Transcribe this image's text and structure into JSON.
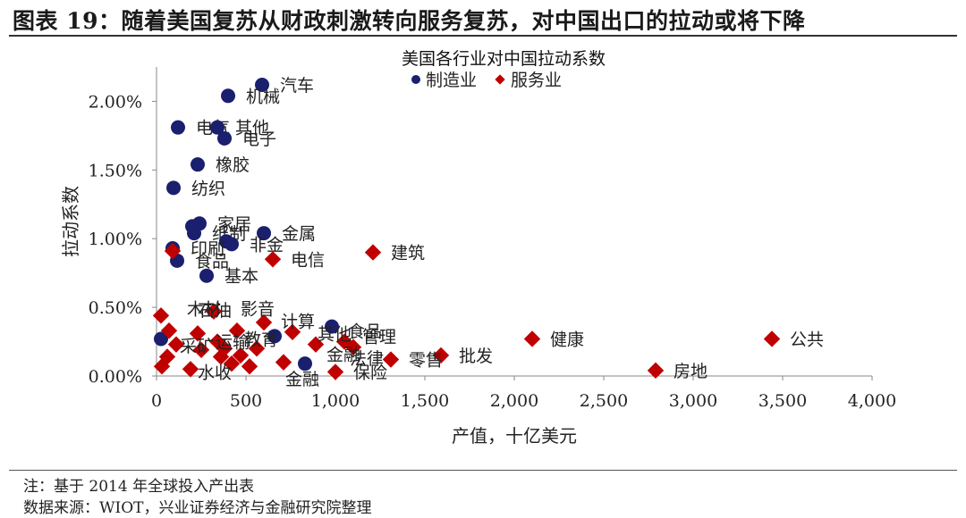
{
  "header": {
    "title": "图表 19：随着美国复苏从财政刺激转向服务复苏，对中国出口的拉动或将下降"
  },
  "footer": {
    "note": "注：基于 2014 年全球投入产出表",
    "source": "数据来源：WIOT，兴业证券经济与金融研究院整理"
  },
  "colors": {
    "manufacturing": "#1a1f6e",
    "services": "#c00000",
    "axis": "#888888",
    "rule": "#333333"
  },
  "chart_data": {
    "type": "scatter",
    "title": "美国各行业对中国拉动系数",
    "xlabel": "产值，十亿美元",
    "ylabel": "拉动系数",
    "xlim": [
      0,
      4000
    ],
    "ylim": [
      0,
      0.0225
    ],
    "x_ticks": [
      0,
      500,
      1000,
      1500,
      2000,
      2500,
      3000,
      3500,
      4000
    ],
    "x_tick_labels": [
      "0",
      "500",
      "1,000",
      "1,500",
      "2,000",
      "2,500",
      "3,000",
      "3,500",
      "4,000"
    ],
    "y_ticks": [
      0,
      0.005,
      0.01,
      0.015,
      0.02
    ],
    "y_tick_labels": [
      "0.00%",
      "0.50%",
      "1.00%",
      "1.50%",
      "2.00%"
    ],
    "legend": {
      "position": "top-right",
      "entries": [
        "制造业",
        "服务业"
      ]
    },
    "series": [
      {
        "name": "制造业",
        "marker": "circle",
        "points": [
          {
            "x": 590,
            "y": 0.0212,
            "label": "汽车"
          },
          {
            "x": 400,
            "y": 0.0204,
            "label": "机械"
          },
          {
            "x": 120,
            "y": 0.0181,
            "label": "电气"
          },
          {
            "x": 340,
            "y": 0.0181,
            "label": "其他"
          },
          {
            "x": 380,
            "y": 0.0173,
            "label": "电子"
          },
          {
            "x": 230,
            "y": 0.0154,
            "label": "橡胶"
          },
          {
            "x": 95,
            "y": 0.0137,
            "label": "纺织"
          },
          {
            "x": 240,
            "y": 0.0111,
            "label": "家居"
          },
          {
            "x": 200,
            "y": 0.0109,
            "label": ""
          },
          {
            "x": 210,
            "y": 0.0104,
            "label": "纸制"
          },
          {
            "x": 390,
            "y": 0.0098,
            "label": ""
          },
          {
            "x": 600,
            "y": 0.0104,
            "label": "金属"
          },
          {
            "x": 90,
            "y": 0.0093,
            "label": "印刷"
          },
          {
            "x": 115,
            "y": 0.0084,
            "label": "食品"
          },
          {
            "x": 420,
            "y": 0.0096,
            "label": "非金"
          },
          {
            "x": 280,
            "y": 0.0073,
            "label": "基本"
          },
          {
            "x": 25,
            "y": 0.0027,
            "label": ""
          },
          {
            "x": 980,
            "y": 0.0036,
            "label": ""
          },
          {
            "x": 660,
            "y": 0.0029,
            "label": ""
          },
          {
            "x": 830,
            "y": 0.0009,
            "label": ""
          }
        ]
      },
      {
        "name": "服务业",
        "marker": "diamond",
        "points": [
          {
            "x": 1210,
            "y": 0.009,
            "label": "建筑"
          },
          {
            "x": 650,
            "y": 0.0085,
            "label": "电信"
          },
          {
            "x": 2100,
            "y": 0.0027,
            "label": "健康"
          },
          {
            "x": 3440,
            "y": 0.0027,
            "label": "公共"
          },
          {
            "x": 2790,
            "y": 0.0004,
            "label": "房地"
          },
          {
            "x": 1590,
            "y": 0.0015,
            "label": "批发"
          },
          {
            "x": 1310,
            "y": 0.0012,
            "label": "零售"
          },
          {
            "x": 1000,
            "y": 0.0003,
            "label": "保险"
          },
          {
            "x": 25,
            "y": 0.0044,
            "label": ""
          },
          {
            "x": 90,
            "y": 0.0091,
            "label": ""
          },
          {
            "x": 70,
            "y": 0.0033,
            "label": ""
          },
          {
            "x": 110,
            "y": 0.0023,
            "label": ""
          },
          {
            "x": 60,
            "y": 0.0014,
            "label": ""
          },
          {
            "x": 30,
            "y": 0.0007,
            "label": ""
          },
          {
            "x": 190,
            "y": 0.0005,
            "label": ""
          },
          {
            "x": 230,
            "y": 0.0031,
            "label": ""
          },
          {
            "x": 320,
            "y": 0.0047,
            "label": ""
          },
          {
            "x": 340,
            "y": 0.0025,
            "label": ""
          },
          {
            "x": 380,
            "y": 0.002,
            "label": ""
          },
          {
            "x": 420,
            "y": 0.0009,
            "label": ""
          },
          {
            "x": 450,
            "y": 0.0033,
            "label": ""
          },
          {
            "x": 470,
            "y": 0.0015,
            "label": ""
          },
          {
            "x": 520,
            "y": 0.0007,
            "label": ""
          },
          {
            "x": 560,
            "y": 0.002,
            "label": ""
          },
          {
            "x": 600,
            "y": 0.0039,
            "label": ""
          },
          {
            "x": 710,
            "y": 0.001,
            "label": ""
          },
          {
            "x": 760,
            "y": 0.0032,
            "label": ""
          },
          {
            "x": 890,
            "y": 0.0023,
            "label": ""
          },
          {
            "x": 1050,
            "y": 0.0025,
            "label": ""
          },
          {
            "x": 1100,
            "y": 0.0021,
            "label": ""
          },
          {
            "x": 360,
            "y": 0.0014,
            "label": ""
          },
          {
            "x": 250,
            "y": 0.0019,
            "label": ""
          }
        ]
      }
    ],
    "annotations": [
      {
        "x": 170,
        "y": 0.0049,
        "text": "木材"
      },
      {
        "x": 230,
        "y": 0.0048,
        "text": "石油"
      },
      {
        "x": 470,
        "y": 0.0049,
        "text": "影音"
      },
      {
        "x": 695,
        "y": 0.004,
        "text": "计算"
      },
      {
        "x": 900,
        "y": 0.0031,
        "text": "其他"
      },
      {
        "x": 1070,
        "y": 0.0033,
        "text": "食品"
      },
      {
        "x": 1150,
        "y": 0.0029,
        "text": "管理"
      },
      {
        "x": 130,
        "y": 0.0022,
        "text": "采矿"
      },
      {
        "x": 330,
        "y": 0.0025,
        "text": "运输"
      },
      {
        "x": 490,
        "y": 0.0027,
        "text": "教育"
      },
      {
        "x": 950,
        "y": 0.0016,
        "text": "金融"
      },
      {
        "x": 1080,
        "y": 0.0013,
        "text": "法律"
      },
      {
        "x": 230,
        "y": 0.0003,
        "text": "水收"
      },
      {
        "x": 720,
        "y": -0.0002,
        "text": "金融"
      }
    ]
  }
}
